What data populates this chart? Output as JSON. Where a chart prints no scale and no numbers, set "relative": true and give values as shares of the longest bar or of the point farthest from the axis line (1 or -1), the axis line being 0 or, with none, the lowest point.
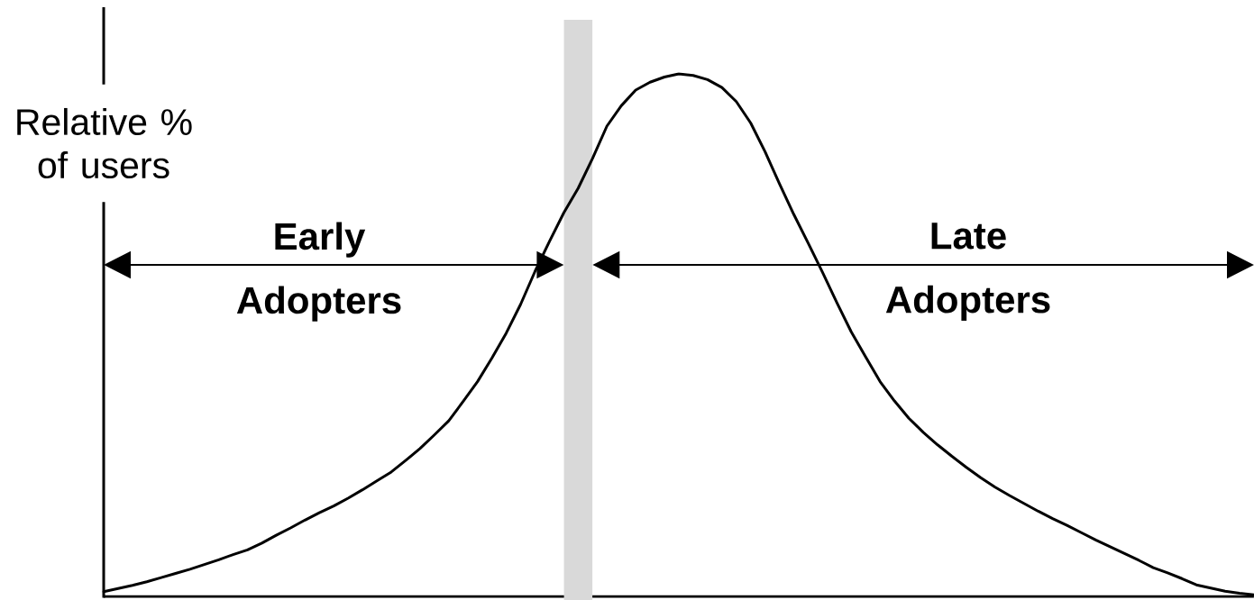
{
  "chart_data": {
    "type": "line",
    "relative": true,
    "ylabel": "Relative % of users",
    "categories": [
      null,
      null,
      null,
      null,
      null,
      null,
      null,
      null,
      null,
      null,
      null,
      null,
      null,
      null,
      null,
      null,
      null,
      null,
      null,
      null,
      null,
      null,
      null,
      null,
      null,
      null,
      null,
      null,
      null,
      null,
      null,
      null,
      null,
      null,
      null,
      null,
      null,
      null,
      null,
      null,
      null,
      null,
      null,
      null,
      null,
      null,
      null,
      null,
      null,
      null,
      null,
      null,
      null,
      null,
      null,
      null,
      null,
      null,
      null,
      null,
      null,
      null,
      null,
      null,
      null,
      null,
      null,
      null,
      null,
      null,
      null,
      null,
      null,
      null,
      null,
      null,
      null,
      null,
      null,
      null,
      null
    ],
    "series": [
      {
        "color": "#000000",
        "values": [
          0.009,
          0.015,
          0.021,
          0.028,
          0.036,
          0.044,
          0.052,
          0.061,
          0.07,
          0.08,
          0.089,
          0.102,
          0.117,
          0.131,
          0.146,
          0.16,
          0.173,
          0.188,
          0.204,
          0.221,
          0.238,
          0.26,
          0.283,
          0.309,
          0.336,
          0.373,
          0.411,
          0.456,
          0.504,
          0.559,
          0.622,
          0.679,
          0.734,
          0.781,
          0.838,
          0.9,
          0.939,
          0.969,
          0.984,
          0.994,
          1,
          0.997,
          0.989,
          0.974,
          0.947,
          0.906,
          0.851,
          0.79,
          0.731,
          0.676,
          0.62,
          0.562,
          0.506,
          0.458,
          0.411,
          0.374,
          0.341,
          0.314,
          0.29,
          0.268,
          0.247,
          0.227,
          0.209,
          0.193,
          0.178,
          0.163,
          0.149,
          0.136,
          0.122,
          0.108,
          0.095,
          0.082,
          0.069,
          0.055,
          0.045,
          0.034,
          0.022,
          0.016,
          0.01,
          0.006,
          0.003
        ]
      }
    ],
    "annotations": [
      "Early Adopters",
      "Late Adopters"
    ]
  }
}
